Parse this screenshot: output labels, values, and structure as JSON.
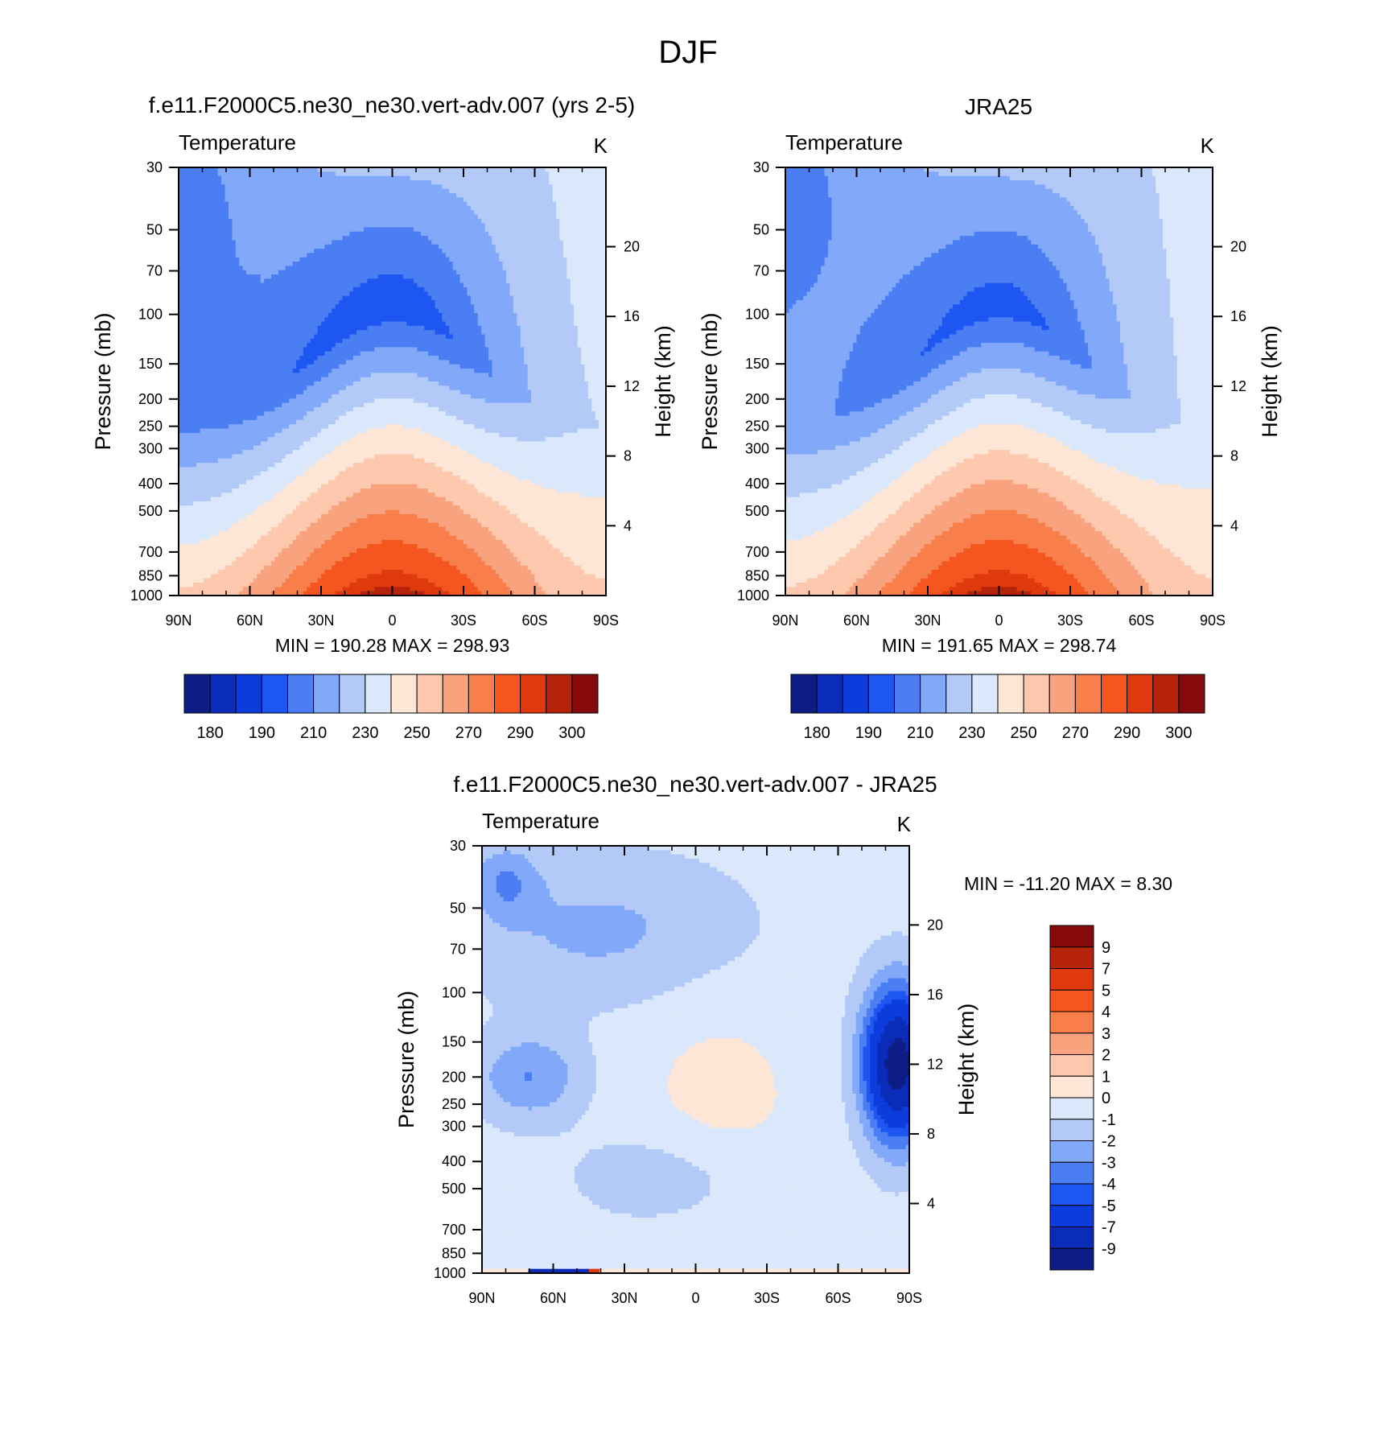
{
  "figure_title": "DJF",
  "chart_data": [
    {
      "type": "heatmap",
      "panel_title": "f.e11.F2000C5.ne30_ne30.vert-adv.007 (yrs 2-5)",
      "left_label": "Temperature",
      "right_label": "K",
      "ylabel": "Pressure (mb)",
      "y2label": "Height (km)",
      "x_ticks": [
        "90N",
        "60N",
        "30N",
        "0",
        "30S",
        "60S",
        "90S"
      ],
      "x_range": [
        90,
        -90
      ],
      "y_ticks": [
        30,
        50,
        70,
        100,
        150,
        200,
        250,
        300,
        400,
        500,
        700,
        850,
        1000
      ],
      "y_scale": "log",
      "y_range": [
        1000,
        30
      ],
      "y2_ticks": [
        4,
        8,
        12,
        16,
        20
      ],
      "stats": "MIN = 190.28  MAX = 298.93",
      "colorbar": {
        "orientation": "horizontal",
        "colors": [
          "#0c1e85",
          "#0a2cb8",
          "#0c3cdc",
          "#1e56f2",
          "#4a7ef2",
          "#82a8fa",
          "#b3caf9",
          "#dbe8fb",
          "#fde6d6",
          "#fdc8ae",
          "#f9a27e",
          "#f87f4c",
          "#f5561f",
          "#df3a0d",
          "#b4230a",
          "#860a0a"
        ],
        "labels": [
          "180",
          "190",
          "210",
          "230",
          "250",
          "270",
          "290",
          "300"
        ]
      },
      "field": {
        "kind": "temperature",
        "t_surface_equator": 298,
        "t_surface_pole": 252,
        "t_tropopause_equator": 193,
        "t_tropopause_north_pole": 208,
        "t_tropopause_south_pole": 230
      }
    },
    {
      "type": "heatmap",
      "panel_title": "JRA25",
      "left_label": "Temperature",
      "right_label": "K",
      "ylabel": "Pressure (mb)",
      "y2label": "Height (km)",
      "x_ticks": [
        "90N",
        "60N",
        "30N",
        "0",
        "30S",
        "60S",
        "90S"
      ],
      "x_range": [
        90,
        -90
      ],
      "y_ticks": [
        30,
        50,
        70,
        100,
        150,
        200,
        250,
        300,
        400,
        500,
        700,
        850,
        1000
      ],
      "y_scale": "log",
      "y_range": [
        1000,
        30
      ],
      "y2_ticks": [
        4,
        8,
        12,
        16,
        20
      ],
      "stats": "MIN = 191.65  MAX = 298.74",
      "colorbar": {
        "orientation": "horizontal",
        "colors": [
          "#0c1e85",
          "#0a2cb8",
          "#0c3cdc",
          "#1e56f2",
          "#4a7ef2",
          "#82a8fa",
          "#b3caf9",
          "#dbe8fb",
          "#fde6d6",
          "#fdc8ae",
          "#f9a27e",
          "#f87f4c",
          "#f5561f",
          "#df3a0d",
          "#b4230a",
          "#860a0a"
        ],
        "labels": [
          "180",
          "190",
          "210",
          "230",
          "250",
          "270",
          "290",
          "300"
        ]
      },
      "field": {
        "kind": "temperature",
        "t_surface_equator": 298,
        "t_surface_pole": 252,
        "t_tropopause_equator": 195,
        "t_tropopause_north_pole": 212,
        "t_tropopause_south_pole": 232
      }
    },
    {
      "type": "heatmap",
      "panel_title": "f.e11.F2000C5.ne30_ne30.vert-adv.007 - JRA25",
      "left_label": "Temperature",
      "right_label": "K",
      "ylabel": "Pressure (mb)",
      "y2label": "Height (km)",
      "x_ticks": [
        "90N",
        "60N",
        "30N",
        "0",
        "30S",
        "60S",
        "90S"
      ],
      "x_range": [
        90,
        -90
      ],
      "y_ticks": [
        30,
        50,
        70,
        100,
        150,
        200,
        250,
        300,
        400,
        500,
        700,
        850,
        1000
      ],
      "y_scale": "log",
      "y_range": [
        1000,
        30
      ],
      "y2_ticks": [
        4,
        8,
        12,
        16,
        20
      ],
      "stats": "MIN = -11.20  MAX =   8.30",
      "colorbar": {
        "orientation": "vertical",
        "colors": [
          "#860a0a",
          "#b4230a",
          "#df3a0d",
          "#f5561f",
          "#f87f4c",
          "#f9a27e",
          "#fdc8ae",
          "#fde6d6",
          "#dbe8fb",
          "#b3caf9",
          "#82a8fa",
          "#4a7ef2",
          "#1e56f2",
          "#0c3cdc",
          "#0a2cb8",
          "#0c1e85"
        ],
        "labels": [
          "9",
          "7",
          "5",
          "4",
          "3",
          "2",
          "1",
          "0",
          "-1",
          "-2",
          "-3",
          "-4",
          "-5",
          "-7",
          "-9"
        ]
      },
      "field": {
        "kind": "difference"
      }
    }
  ]
}
